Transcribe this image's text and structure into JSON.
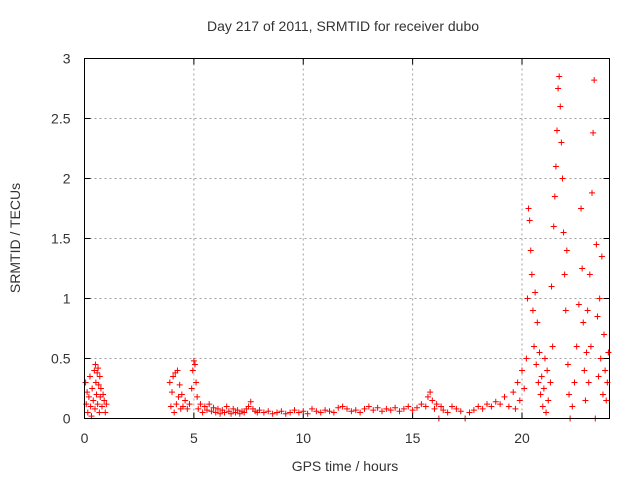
{
  "chart_data": {
    "type": "scatter",
    "title": "Day 217 of 2011, SRMTID for receiver dubo",
    "xlabel": "GPS time / hours",
    "ylabel": "SRMTID / TECUs",
    "xlim": [
      0,
      24
    ],
    "ylim": [
      0,
      3
    ],
    "xticks": [
      0,
      5,
      10,
      15,
      20
    ],
    "xtick_labels": [
      "0",
      "5",
      "10",
      "15",
      "20"
    ],
    "yticks": [
      0,
      0.5,
      1,
      1.5,
      2,
      2.5,
      3
    ],
    "ytick_labels": [
      "0",
      "0.5",
      "1",
      "1.5",
      "2",
      "2.5",
      "3"
    ],
    "grid": true,
    "marker": "+",
    "color": "#ff0000",
    "series": [
      {
        "name": "SRMTID",
        "points": [
          [
            0.05,
            0.3
          ],
          [
            0.08,
            0.12
          ],
          [
            0.12,
            0.22
          ],
          [
            0.15,
            0.05
          ],
          [
            0.2,
            0.18
          ],
          [
            0.25,
            0.35
          ],
          [
            0.28,
            0.1
          ],
          [
            0.32,
            0.02
          ],
          [
            0.35,
            0.25
          ],
          [
            0.4,
            0.15
          ],
          [
            0.45,
            0.4
          ],
          [
            0.48,
            0.08
          ],
          [
            0.5,
            0.45
          ],
          [
            0.52,
            0.3
          ],
          [
            0.55,
            0.2
          ],
          [
            0.58,
            0.38
          ],
          [
            0.6,
            0.12
          ],
          [
            0.62,
            0.42
          ],
          [
            0.65,
            0.28
          ],
          [
            0.68,
            0.05
          ],
          [
            0.7,
            0.35
          ],
          [
            0.72,
            0.18
          ],
          [
            0.75,
            0.25
          ],
          [
            0.8,
            0.1
          ],
          [
            0.85,
            0.2
          ],
          [
            0.9,
            0.15
          ],
          [
            0.95,
            0.05
          ],
          [
            1.0,
            0.12
          ],
          [
            3.9,
            0.3
          ],
          [
            3.95,
            0.1
          ],
          [
            4.0,
            0.22
          ],
          [
            4.05,
            0.35
          ],
          [
            4.1,
            0.05
          ],
          [
            4.15,
            0.38
          ],
          [
            4.2,
            0.12
          ],
          [
            4.25,
            0.4
          ],
          [
            4.3,
            0.18
          ],
          [
            4.35,
            0.28
          ],
          [
            4.4,
            0.08
          ],
          [
            4.45,
            0.2
          ],
          [
            4.5,
            0.1
          ],
          [
            4.6,
            0.15
          ],
          [
            4.7,
            0.08
          ],
          [
            4.8,
            0.12
          ],
          [
            4.9,
            0.25
          ],
          [
            4.95,
            0.4
          ],
          [
            5.0,
            0.48
          ],
          [
            5.05,
            0.45
          ],
          [
            5.1,
            0.3
          ],
          [
            5.15,
            0.18
          ],
          [
            5.2,
            0.08
          ],
          [
            5.3,
            0.12
          ],
          [
            5.4,
            0.05
          ],
          [
            5.5,
            0.1
          ],
          [
            5.6,
            0.07
          ],
          [
            5.7,
            0.12
          ],
          [
            5.8,
            0.06
          ],
          [
            5.9,
            0.09
          ],
          [
            6.0,
            0.05
          ],
          [
            6.1,
            0.08
          ],
          [
            6.2,
            0.04
          ],
          [
            6.3,
            0.07
          ],
          [
            6.4,
            0.05
          ],
          [
            6.5,
            0.1
          ],
          [
            6.6,
            0.06
          ],
          [
            6.7,
            0.04
          ],
          [
            6.8,
            0.08
          ],
          [
            6.9,
            0.05
          ],
          [
            7.0,
            0.07
          ],
          [
            7.1,
            0.04
          ],
          [
            7.2,
            0.06
          ],
          [
            7.3,
            0.05
          ],
          [
            7.4,
            0.08
          ],
          [
            7.5,
            0.1
          ],
          [
            7.6,
            0.14
          ],
          [
            7.7,
            0.08
          ],
          [
            7.8,
            0.06
          ],
          [
            7.9,
            0.05
          ],
          [
            8.0,
            0.07
          ],
          [
            8.2,
            0.05
          ],
          [
            8.4,
            0.06
          ],
          [
            8.6,
            0.04
          ],
          [
            8.8,
            0.05
          ],
          [
            9.0,
            0.06
          ],
          [
            9.2,
            0.04
          ],
          [
            9.4,
            0.05
          ],
          [
            9.6,
            0.07
          ],
          [
            9.8,
            0.05
          ],
          [
            10.0,
            0.06
          ],
          [
            10.2,
            0.04
          ],
          [
            10.4,
            0.08
          ],
          [
            10.6,
            0.06
          ],
          [
            10.8,
            0.05
          ],
          [
            11.0,
            0.07
          ],
          [
            11.2,
            0.06
          ],
          [
            11.4,
            0.05
          ],
          [
            11.6,
            0.09
          ],
          [
            11.8,
            0.1
          ],
          [
            12.0,
            0.08
          ],
          [
            12.2,
            0.06
          ],
          [
            12.4,
            0.07
          ],
          [
            12.6,
            0.05
          ],
          [
            12.8,
            0.08
          ],
          [
            13.0,
            0.1
          ],
          [
            13.2,
            0.07
          ],
          [
            13.4,
            0.09
          ],
          [
            13.6,
            0.06
          ],
          [
            13.8,
            0.08
          ],
          [
            14.0,
            0.07
          ],
          [
            14.2,
            0.09
          ],
          [
            14.4,
            0.06
          ],
          [
            14.6,
            0.08
          ],
          [
            14.8,
            0.1
          ],
          [
            15.0,
            0.07
          ],
          [
            15.2,
            0.09
          ],
          [
            15.4,
            0.12
          ],
          [
            15.6,
            0.1
          ],
          [
            15.7,
            0.18
          ],
          [
            15.8,
            0.22
          ],
          [
            15.9,
            0.15
          ],
          [
            16.0,
            0.08
          ],
          [
            16.1,
            0.12
          ],
          [
            16.2,
            0.0
          ],
          [
            16.3,
            0.1
          ],
          [
            16.4,
            0.07
          ],
          [
            16.6,
            0.05
          ],
          [
            16.8,
            0.1
          ],
          [
            17.0,
            0.08
          ],
          [
            17.2,
            0.06
          ],
          [
            17.4,
            0.0
          ],
          [
            17.6,
            0.05
          ],
          [
            17.8,
            0.07
          ],
          [
            18.0,
            0.1
          ],
          [
            18.2,
            0.08
          ],
          [
            18.4,
            0.12
          ],
          [
            18.6,
            0.1
          ],
          [
            18.8,
            0.14
          ],
          [
            19.0,
            0.12
          ],
          [
            19.2,
            0.18
          ],
          [
            19.4,
            0.1
          ],
          [
            19.6,
            0.22
          ],
          [
            19.7,
            0.08
          ],
          [
            19.8,
            0.3
          ],
          [
            19.9,
            0.15
          ],
          [
            20.0,
            0.4
          ],
          [
            20.1,
            0.25
          ],
          [
            20.2,
            0.5
          ],
          [
            20.25,
            1.0
          ],
          [
            20.3,
            1.75
          ],
          [
            20.35,
            1.65
          ],
          [
            20.4,
            1.4
          ],
          [
            20.45,
            1.2
          ],
          [
            20.5,
            0.9
          ],
          [
            20.55,
            0.6
          ],
          [
            20.6,
            1.05
          ],
          [
            20.65,
            0.45
          ],
          [
            20.7,
            0.8
          ],
          [
            20.75,
            0.3
          ],
          [
            20.8,
            0.55
          ],
          [
            20.85,
            0.2
          ],
          [
            20.9,
            0.35
          ],
          [
            20.95,
            0.1
          ],
          [
            21.0,
            0.25
          ],
          [
            21.05,
            0.5
          ],
          [
            21.1,
            0.05
          ],
          [
            21.15,
            0.4
          ],
          [
            21.2,
            0.15
          ],
          [
            21.3,
            0.3
          ],
          [
            21.35,
            1.1
          ],
          [
            21.4,
            0.6
          ],
          [
            21.45,
            1.6
          ],
          [
            21.5,
            1.85
          ],
          [
            21.55,
            2.1
          ],
          [
            21.6,
            2.4
          ],
          [
            21.65,
            2.75
          ],
          [
            21.7,
            2.85
          ],
          [
            21.75,
            2.6
          ],
          [
            21.8,
            2.3
          ],
          [
            21.85,
            2.0
          ],
          [
            21.9,
            1.55
          ],
          [
            21.95,
            1.2
          ],
          [
            22.0,
            0.9
          ],
          [
            22.05,
            1.4
          ],
          [
            22.1,
            0.45
          ],
          [
            22.15,
            0.2
          ],
          [
            22.2,
            0.0
          ],
          [
            22.3,
            0.1
          ],
          [
            22.4,
            0.3
          ],
          [
            22.5,
            0.6
          ],
          [
            22.6,
            0.95
          ],
          [
            22.7,
            1.75
          ],
          [
            22.75,
            1.25
          ],
          [
            22.8,
            0.8
          ],
          [
            22.85,
            0.4
          ],
          [
            22.9,
            0.15
          ],
          [
            22.95,
            0.55
          ],
          [
            23.0,
            0.9
          ],
          [
            23.05,
            0.3
          ],
          [
            23.1,
            1.2
          ],
          [
            23.15,
            0.6
          ],
          [
            23.2,
            1.88
          ],
          [
            23.25,
            2.38
          ],
          [
            23.3,
            2.82
          ],
          [
            23.35,
            0.0
          ],
          [
            23.4,
            1.45
          ],
          [
            23.45,
            0.85
          ],
          [
            23.5,
            0.35
          ],
          [
            23.55,
            1.0
          ],
          [
            23.6,
            0.5
          ],
          [
            23.65,
            1.35
          ],
          [
            23.7,
            0.2
          ],
          [
            23.75,
            0.7
          ],
          [
            23.8,
            0.4
          ],
          [
            23.85,
            0.15
          ],
          [
            23.9,
            0.3
          ],
          [
            23.95,
            0.55
          ]
        ]
      }
    ]
  }
}
